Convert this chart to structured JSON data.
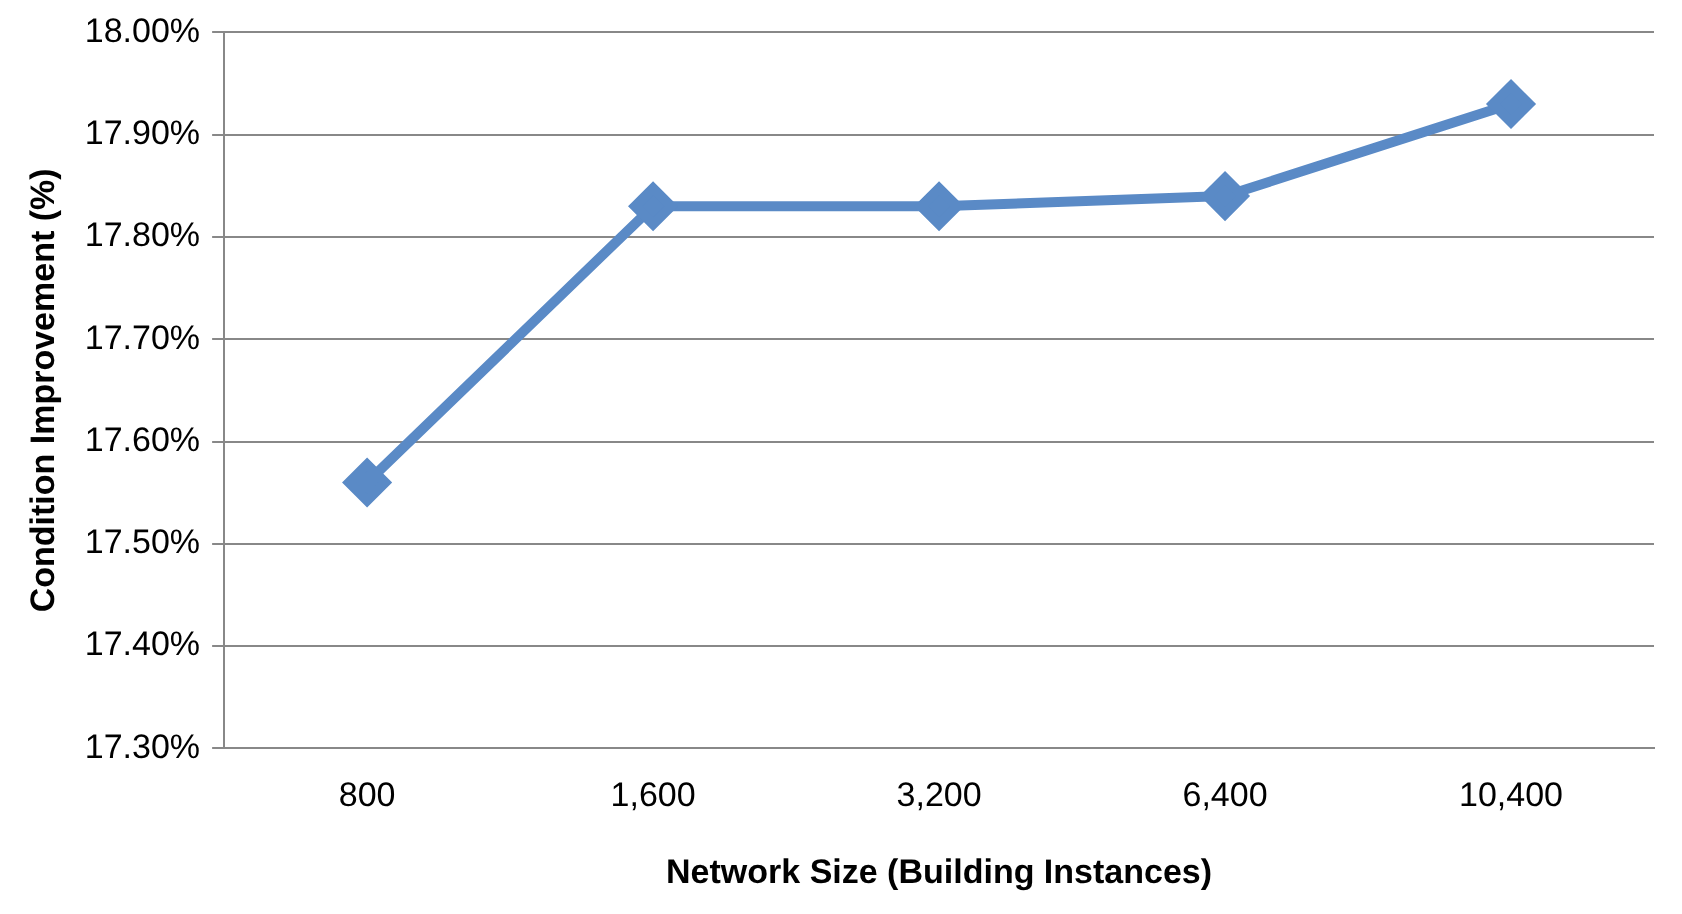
{
  "chart_data": {
    "type": "line",
    "xlabel": "Network Size (Building Instances)",
    "ylabel": "Condition Improvement (%)",
    "categories": [
      "800",
      "1,600",
      "3,200",
      "6,400",
      "10,400"
    ],
    "series": [
      {
        "color": "#5a8ac6",
        "values": [
          17.56,
          17.83,
          17.83,
          17.84,
          17.93
        ]
      }
    ],
    "ylim": [
      17.3,
      18.0
    ],
    "yticks": [
      {
        "value": 17.3,
        "label": "17.30%"
      },
      {
        "value": 17.4,
        "label": "17.40%"
      },
      {
        "value": 17.5,
        "label": "17.50%"
      },
      {
        "value": 17.6,
        "label": "17.60%"
      },
      {
        "value": 17.7,
        "label": "17.70%"
      },
      {
        "value": 17.8,
        "label": "17.80%"
      },
      {
        "value": 17.9,
        "label": "17.90%"
      },
      {
        "value": 18.0,
        "label": "18.00%"
      }
    ],
    "grid": "y",
    "legend": false,
    "marker": "diamond",
    "line_style": "solid"
  }
}
